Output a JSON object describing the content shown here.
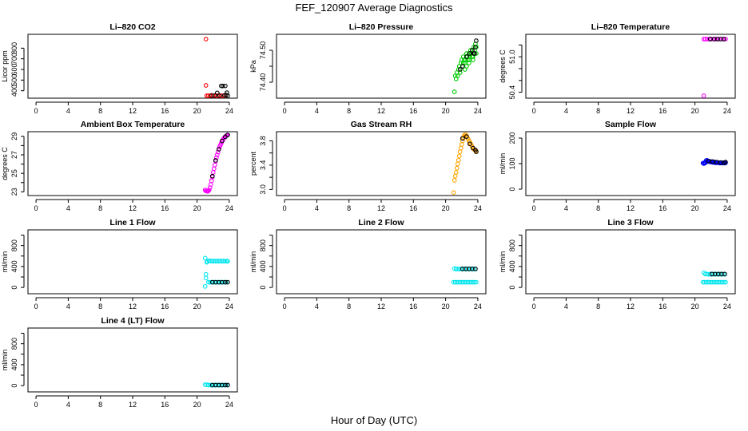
{
  "figure": {
    "title": "FEF_120907  Average Diagnostics",
    "xlabel": "Hour of Day (UTC)"
  },
  "chart_data": [
    {
      "type": "scatter",
      "title": "Li–820 CO2",
      "ylabel": "Licor ppm",
      "xlim": [
        -1,
        25
      ],
      "xticks": [
        0,
        4,
        8,
        12,
        16,
        20,
        24
      ],
      "ylim": [
        330,
        930
      ],
      "yticks": [
        400,
        500,
        600,
        700,
        800
      ],
      "series": [
        {
          "name": "red",
          "color": "#ff0000",
          "x": [
            21.1,
            21.1,
            21.2,
            21.4,
            21.6,
            21.8,
            22.0,
            22.2,
            22.4,
            22.6,
            22.8,
            23.0,
            23.2,
            23.4
          ],
          "y": [
            885,
            450,
            350,
            348,
            352,
            356,
            349,
            352,
            350,
            347,
            348,
            352,
            349,
            346
          ]
        },
        {
          "name": "black",
          "color": "#000000",
          "x": [
            21.8,
            22.2,
            22.5,
            22.8,
            23.0,
            23.2,
            23.4,
            23.5,
            23.6,
            23.7,
            23.8
          ],
          "y": [
            352,
            355,
            380,
            352,
            445,
            445,
            355,
            445,
            360,
            382,
            352
          ]
        }
      ]
    },
    {
      "type": "scatter",
      "title": "Li–820 Pressure",
      "ylabel": "kPa",
      "xlim": [
        -1,
        25
      ],
      "xticks": [
        0,
        4,
        8,
        12,
        16,
        20,
        24
      ],
      "ylim": [
        74.35,
        74.55
      ],
      "yticks": [
        74.4,
        74.45,
        74.5
      ],
      "ytick_labels": [
        "74.40",
        "",
        "74.50"
      ],
      "series": [
        {
          "name": "green",
          "color": "#00cc00",
          "x": [
            21.1,
            21.2,
            21.3,
            21.4,
            21.6,
            21.8,
            21.9,
            22.0,
            22.1,
            22.2,
            22.3,
            22.4,
            22.5,
            22.6,
            22.7,
            22.8,
            22.9,
            23.0,
            23.1,
            23.2,
            23.3,
            23.4,
            23.5,
            23.6,
            23.7,
            23.8,
            21.5,
            21.7,
            22.2,
            22.6,
            23.0,
            23.4,
            23.8,
            22.4,
            22.9,
            23.3
          ],
          "y": [
            74.37,
            74.42,
            74.41,
            74.43,
            74.44,
            74.43,
            74.46,
            74.47,
            74.45,
            74.48,
            74.47,
            74.46,
            74.47,
            74.49,
            74.48,
            74.47,
            74.49,
            74.48,
            74.5,
            74.49,
            74.5,
            74.48,
            74.51,
            74.5,
            74.52,
            74.51,
            74.42,
            74.45,
            74.46,
            74.45,
            74.47,
            74.47,
            74.49,
            74.44,
            74.46,
            74.48
          ]
        },
        {
          "name": "black",
          "color": "#000000",
          "x": [
            21.8,
            22.1,
            22.6,
            23.0,
            23.3,
            23.6,
            23.8,
            23.7,
            23.5
          ],
          "y": [
            74.44,
            74.45,
            74.48,
            74.49,
            74.5,
            74.49,
            74.53,
            74.51,
            74.49
          ]
        }
      ]
    },
    {
      "type": "scatter",
      "title": "Li–820 Temperature",
      "ylabel": "degrees C",
      "xlim": [
        -1,
        25
      ],
      "xticks": [
        0,
        4,
        8,
        12,
        16,
        20,
        24
      ],
      "ylim": [
        50.3,
        51.38
      ],
      "yticks": [
        50.4,
        50.6,
        50.8,
        51.0,
        51.2
      ],
      "ytick_labels": [
        "50.4",
        "",
        "",
        "51.0",
        ""
      ],
      "series": [
        {
          "name": "magenta",
          "color": "#ff00ff",
          "x": [
            21.1,
            21.1,
            21.3,
            21.5,
            21.8,
            22.0,
            22.3,
            22.6,
            22.9,
            23.2,
            23.5,
            23.8
          ],
          "y": [
            50.32,
            51.3,
            51.3,
            51.3,
            51.3,
            51.3,
            51.3,
            51.3,
            51.3,
            51.3,
            51.3,
            51.3
          ]
        },
        {
          "name": "black",
          "color": "#000000",
          "x": [
            21.9,
            22.4,
            22.8,
            23.2,
            23.6
          ],
          "y": [
            51.3,
            51.3,
            51.3,
            51.3,
            51.3
          ]
        }
      ]
    },
    {
      "type": "scatter",
      "title": "Ambient Box Temperature",
      "ylabel": "degrees C",
      "xlim": [
        -1,
        25
      ],
      "xticks": [
        0,
        4,
        8,
        12,
        16,
        20,
        24
      ],
      "ylim": [
        22.6,
        29.5
      ],
      "yticks": [
        23,
        24,
        25,
        26,
        27,
        28,
        29
      ],
      "ytick_labels": [
        "23",
        "",
        "25",
        "",
        "27",
        "",
        "29"
      ],
      "series": [
        {
          "name": "magenta",
          "color": "#ff00ff",
          "x": [
            21.0,
            21.1,
            21.2,
            21.3,
            21.4,
            21.5,
            21.6,
            21.7,
            21.8,
            21.9,
            22.0,
            22.1,
            22.2,
            22.3,
            22.4,
            22.5,
            22.6,
            22.7,
            22.8,
            22.9,
            23.0,
            23.1,
            23.2,
            23.3,
            23.4,
            23.5,
            23.6,
            23.7,
            23.8
          ],
          "y": [
            23.2,
            23.1,
            23.1,
            23.05,
            23.1,
            23.2,
            23.45,
            23.8,
            24.2,
            24.6,
            25.1,
            25.5,
            25.9,
            26.3,
            26.7,
            27.0,
            27.3,
            27.6,
            27.85,
            28.05,
            28.25,
            28.45,
            28.6,
            28.75,
            28.85,
            28.95,
            29.05,
            29.1,
            29.15
          ]
        },
        {
          "name": "black",
          "color": "#000000",
          "x": [
            21.9,
            22.3,
            22.7,
            23.1,
            23.5,
            23.8
          ],
          "y": [
            24.7,
            26.4,
            27.6,
            28.5,
            28.95,
            29.15
          ]
        }
      ]
    },
    {
      "type": "scatter",
      "title": "Gas Stream RH",
      "ylabel": "percent",
      "xlim": [
        -1,
        25
      ],
      "xticks": [
        0,
        4,
        8,
        12,
        16,
        20,
        24
      ],
      "ylim": [
        2.9,
        3.95
      ],
      "yticks": [
        3.0,
        3.2,
        3.4,
        3.6,
        3.8
      ],
      "ytick_labels": [
        "3.0",
        "",
        "3.4",
        "",
        "3.8"
      ],
      "series": [
        {
          "name": "orange",
          "color": "#ffa500",
          "x": [
            21.0,
            21.1,
            21.2,
            21.3,
            21.4,
            21.5,
            21.6,
            21.7,
            21.8,
            21.9,
            22.0,
            22.1,
            22.2,
            22.3,
            22.4,
            22.5,
            22.6,
            22.7,
            22.8,
            22.9,
            23.0,
            23.1,
            23.2,
            23.3,
            23.4,
            23.5,
            23.6,
            23.7,
            23.8
          ],
          "y": [
            2.95,
            3.15,
            3.22,
            3.28,
            3.35,
            3.42,
            3.48,
            3.55,
            3.62,
            3.68,
            3.74,
            3.8,
            3.85,
            3.88,
            3.9,
            3.9,
            3.88,
            3.85,
            3.83,
            3.8,
            3.78,
            3.75,
            3.73,
            3.7,
            3.68,
            3.66,
            3.65,
            3.64,
            3.63
          ]
        },
        {
          "name": "black",
          "color": "#000000",
          "x": [
            22.1,
            22.6,
            23.0,
            23.4,
            23.7,
            23.8
          ],
          "y": [
            3.84,
            3.87,
            3.75,
            3.68,
            3.65,
            3.62
          ]
        }
      ]
    },
    {
      "type": "scatter",
      "title": "Sample Flow",
      "ylabel": "ml/min",
      "xlim": [
        -1,
        25
      ],
      "xticks": [
        0,
        4,
        8,
        12,
        16,
        20,
        24
      ],
      "ylim": [
        -25,
        225
      ],
      "yticks": [
        0,
        100,
        200
      ],
      "series": [
        {
          "name": "blue",
          "color": "#0000ff",
          "x": [
            21.0,
            21.1,
            21.2,
            21.3,
            21.4,
            21.5,
            21.6,
            21.7,
            21.8,
            21.9,
            22.0,
            22.1,
            22.2,
            22.3,
            22.4,
            22.5,
            22.6,
            22.7,
            22.8,
            22.9,
            23.0,
            23.1,
            23.2,
            23.3,
            23.4,
            23.5,
            23.6,
            23.7,
            23.8
          ],
          "y": [
            102,
            100,
            104,
            103,
            112,
            113,
            110,
            108,
            109,
            107,
            106,
            108,
            105,
            107,
            104,
            106,
            103,
            105,
            104,
            103,
            104,
            102,
            103,
            104,
            102,
            103,
            104,
            102,
            103
          ]
        },
        {
          "name": "black",
          "color": "#000000",
          "x": [
            21.7,
            22.2,
            22.7,
            23.2,
            23.6,
            23.8
          ],
          "y": [
            110,
            108,
            106,
            104,
            103,
            106
          ]
        }
      ]
    },
    {
      "type": "scatter",
      "title": "Line 1 Flow",
      "ylabel": "ml/min",
      "xlim": [
        -1,
        25
      ],
      "xticks": [
        0,
        4,
        8,
        12,
        16,
        20,
        24
      ],
      "ylim": [
        -120,
        1100
      ],
      "yticks": [
        0,
        200,
        400,
        600,
        800,
        1000
      ],
      "ytick_labels": [
        "0",
        "",
        "400",
        "",
        "800",
        ""
      ],
      "series": [
        {
          "name": "cyan",
          "color": "#00e5ee",
          "x": [
            21.0,
            21.0,
            21.1,
            21.1,
            21.2,
            21.3,
            21.5,
            21.7,
            21.9,
            22.1,
            22.3,
            22.5,
            22.7,
            22.9,
            23.1,
            23.3,
            23.5,
            23.7,
            23.8,
            21.4,
            21.6,
            21.8,
            22.0,
            22.2,
            22.4,
            22.6,
            22.8,
            23.0,
            23.2,
            23.4,
            23.6
          ],
          "y": [
            560,
            20,
            250,
            180,
            480,
            500,
            510,
            505,
            500,
            505,
            500,
            505,
            500,
            505,
            500,
            505,
            500,
            505,
            500,
            100,
            100,
            100,
            100,
            100,
            100,
            100,
            100,
            100,
            100,
            100,
            100
          ]
        },
        {
          "name": "black",
          "color": "#000000",
          "x": [
            21.9,
            22.3,
            22.7,
            23.1,
            23.5,
            23.8
          ],
          "y": [
            100,
            100,
            100,
            100,
            100,
            100
          ]
        }
      ]
    },
    {
      "type": "scatter",
      "title": "Line 2 Flow",
      "ylabel": "ml/min",
      "xlim": [
        -1,
        25
      ],
      "xticks": [
        0,
        4,
        8,
        12,
        16,
        20,
        24
      ],
      "ylim": [
        -120,
        1100
      ],
      "yticks": [
        0,
        200,
        400,
        600,
        800,
        1000
      ],
      "ytick_labels": [
        "0",
        "",
        "400",
        "",
        "800",
        ""
      ],
      "series": [
        {
          "name": "cyan",
          "color": "#00e5ee",
          "x": [
            21.0,
            21.2,
            21.4,
            21.6,
            21.8,
            22.0,
            22.2,
            22.4,
            22.6,
            22.8,
            23.0,
            23.2,
            23.4,
            23.6,
            23.8,
            21.1,
            21.3,
            21.5,
            21.7,
            21.9,
            22.1,
            22.3,
            22.5,
            22.7,
            22.9,
            23.1,
            23.3,
            23.5,
            23.7
          ],
          "y": [
            100,
            100,
            100,
            100,
            100,
            100,
            100,
            100,
            100,
            100,
            100,
            100,
            100,
            100,
            100,
            360,
            350,
            355,
            350,
            355,
            350,
            355,
            350,
            355,
            350,
            355,
            350,
            355,
            350
          ]
        },
        {
          "name": "black",
          "color": "#000000",
          "x": [
            22.1,
            22.5,
            22.9,
            23.3,
            23.7
          ],
          "y": [
            355,
            355,
            355,
            355,
            355
          ]
        }
      ]
    },
    {
      "type": "scatter",
      "title": "Line 3 Flow",
      "ylabel": "ml/min",
      "xlim": [
        -1,
        25
      ],
      "xticks": [
        0,
        4,
        8,
        12,
        16,
        20,
        24
      ],
      "ylim": [
        -120,
        1100
      ],
      "yticks": [
        0,
        200,
        400,
        600,
        800,
        1000
      ],
      "ytick_labels": [
        "0",
        "",
        "400",
        "",
        "800",
        ""
      ],
      "series": [
        {
          "name": "cyan",
          "color": "#00e5ee",
          "x": [
            21.0,
            21.2,
            21.4,
            21.6,
            21.8,
            22.0,
            22.2,
            22.4,
            22.6,
            22.8,
            23.0,
            23.2,
            23.4,
            23.6,
            23.8,
            21.1,
            21.3,
            21.5,
            21.7,
            21.9,
            22.1,
            22.3,
            22.5,
            22.7,
            22.9,
            23.1,
            23.3,
            23.5,
            23.7
          ],
          "y": [
            100,
            100,
            100,
            100,
            100,
            100,
            100,
            100,
            100,
            100,
            100,
            100,
            100,
            100,
            100,
            280,
            255,
            255,
            250,
            255,
            250,
            255,
            250,
            255,
            250,
            255,
            250,
            255,
            250
          ]
        },
        {
          "name": "black",
          "color": "#000000",
          "x": [
            22.1,
            22.5,
            22.9,
            23.3,
            23.7
          ],
          "y": [
            255,
            255,
            255,
            255,
            255
          ]
        }
      ]
    },
    {
      "type": "scatter",
      "title": "Line 4 (LT) Flow",
      "ylabel": "ml/min",
      "xlim": [
        -1,
        25
      ],
      "xticks": [
        0,
        4,
        8,
        12,
        16,
        20,
        24
      ],
      "ylim": [
        -120,
        1100
      ],
      "yticks": [
        0,
        200,
        400,
        600,
        800,
        1000
      ],
      "ytick_labels": [
        "0",
        "",
        "400",
        "",
        "800",
        ""
      ],
      "series": [
        {
          "name": "cyan",
          "color": "#00e5ee",
          "x": [
            21.0,
            21.2,
            21.4,
            21.6,
            21.8,
            22.0,
            22.2,
            22.4,
            22.6,
            22.8,
            23.0,
            23.2,
            23.4,
            23.6,
            23.8
          ],
          "y": [
            20,
            15,
            10,
            10,
            10,
            10,
            10,
            10,
            10,
            10,
            10,
            10,
            10,
            10,
            10
          ]
        },
        {
          "name": "black",
          "color": "#000000",
          "x": [
            21.9,
            22.3,
            22.7,
            23.1,
            23.5,
            23.8
          ],
          "y": [
            10,
            10,
            10,
            10,
            10,
            10
          ]
        }
      ]
    }
  ]
}
